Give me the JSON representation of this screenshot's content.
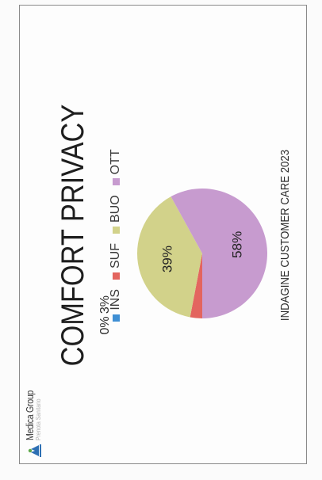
{
  "logo": {
    "name": "Medica Group",
    "sub": "Prenota Sanitario"
  },
  "footer": "INDAGINE CUSTOMER CARE 2023",
  "colors": {
    "INS": "#3f8fd4",
    "SUF": "#e3655f",
    "BUO": "#d2d28a",
    "OTT": "#c79bcf"
  },
  "chart_data": {
    "type": "pie",
    "title": "COMFORT PRIVACY",
    "legend_position": "top",
    "categories": [
      "INS",
      "SUF",
      "BUO",
      "OTT"
    ],
    "values": [
      0,
      3,
      39,
      58
    ],
    "labels": [
      "0%",
      "3%",
      "39%",
      "58%"
    ]
  }
}
